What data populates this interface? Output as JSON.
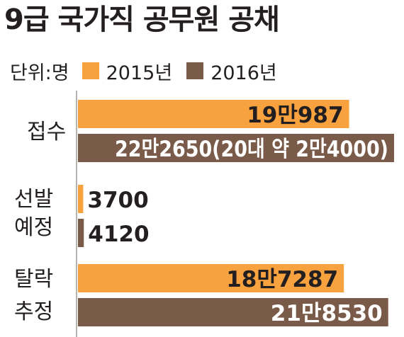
{
  "title": "9급 국가직 공무원 공채",
  "legend": {
    "unit": "단위:명",
    "items": [
      {
        "label": "2015년",
        "color": "#f7a23e"
      },
      {
        "label": "2016년",
        "color": "#7a5a48"
      }
    ]
  },
  "categories": [
    {
      "label_lines": [
        "접수"
      ]
    },
    {
      "label_lines": [
        "선발",
        "예정"
      ]
    },
    {
      "label_lines": [
        "탈락",
        "추정"
      ]
    }
  ],
  "chart_data": {
    "type": "bar",
    "orientation": "horizontal",
    "categories": [
      "접수",
      "선발예정",
      "탈락추정"
    ],
    "series": [
      {
        "name": "2015년",
        "color": "#f7a23e",
        "values": [
          190987,
          3700,
          187287
        ],
        "labels": [
          "19만987",
          "3700",
          "18만7287"
        ]
      },
      {
        "name": "2016년",
        "color": "#7a5a48",
        "values": [
          222650,
          4120,
          218530
        ],
        "labels": [
          "22만2650(20대 약 2만4000)",
          "4120",
          "21만8530"
        ]
      }
    ],
    "unit": "명",
    "title": "9급 국가직 공무원 공채"
  }
}
